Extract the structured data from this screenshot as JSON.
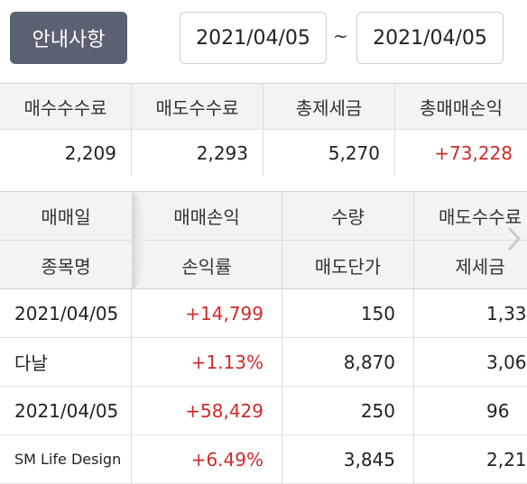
{
  "header": {
    "notice_button": "안내사항",
    "date_start": "2021/04/05",
    "date_separator": "~",
    "date_end": "2021/04/05"
  },
  "summary": {
    "headers": [
      "매수수수료",
      "매도수수료",
      "총제세금",
      "총매매손익"
    ],
    "values": [
      "2,209",
      "2,293",
      "5,270",
      "+73,228"
    ]
  },
  "table": {
    "header_row1": [
      "매매일",
      "매매손익",
      "수량",
      "매도수수료"
    ],
    "header_row2": [
      "종목명",
      "손익률",
      "매도단가",
      "제세금"
    ],
    "rows": [
      [
        "2021/04/05",
        "+14,799",
        "150",
        "1,33"
      ],
      [
        "다날",
        "+1.13%",
        "8,870",
        "3,06"
      ],
      [
        "2021/04/05",
        "+58,429",
        "250",
        "96"
      ],
      [
        "SM Life Design",
        "+6.49%",
        "3,845",
        "2,21"
      ]
    ]
  },
  "colors": {
    "notice_bg": "#5a6170",
    "profit_red": "#d12a2a",
    "header_bg": "#f3f3f3"
  },
  "icons": {
    "scroll_right": "chevron-right-icon"
  }
}
